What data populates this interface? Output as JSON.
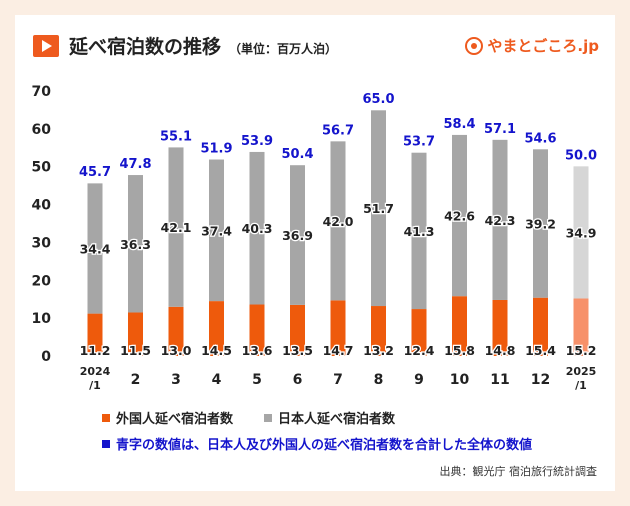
{
  "header": {
    "title": "延べ宿泊数の推移",
    "unit": "（単位：百万人泊）",
    "logo_text": "やまとごころ.jp"
  },
  "colors": {
    "foreign": "#ee5a0c",
    "foreign_light": "#f7916a",
    "japanese": "#a6a6a6",
    "japanese_light": "#d6d6d6",
    "total_label": "#1414cc",
    "accent": "#ee5a1e"
  },
  "legend": {
    "foreign": "外国人延べ宿泊者数",
    "japanese": "日本人延べ宿泊者数",
    "note": "青字の数値は、日本人及び外国人の延べ宿泊者数を合計した全体の数値"
  },
  "source": "出典：観光庁 宿泊旅行統計調査",
  "chart_data": {
    "type": "bar",
    "stacked": true,
    "categories": [
      "2024\n/1",
      "2",
      "3",
      "4",
      "5",
      "6",
      "7",
      "8",
      "9",
      "10",
      "11",
      "12",
      "2025\n/1"
    ],
    "series": [
      {
        "name": "外国人延べ宿泊者数",
        "values": [
          11.2,
          11.5,
          13.0,
          14.5,
          13.6,
          13.5,
          14.7,
          13.2,
          12.4,
          15.8,
          14.8,
          15.4,
          15.2
        ]
      },
      {
        "name": "日本人延べ宿泊者数",
        "values": [
          34.4,
          36.3,
          42.1,
          37.4,
          40.3,
          36.9,
          42.0,
          51.7,
          41.3,
          42.6,
          42.3,
          39.2,
          34.9
        ]
      }
    ],
    "totals": [
      45.7,
      47.8,
      55.1,
      51.9,
      53.9,
      50.4,
      56.7,
      65.0,
      53.7,
      58.4,
      57.1,
      54.6,
      50.0
    ],
    "highlight_last": true,
    "ylim": [
      0,
      70
    ],
    "yticks": [
      0,
      10,
      20,
      30,
      40,
      50,
      60,
      70
    ],
    "grid": false
  }
}
